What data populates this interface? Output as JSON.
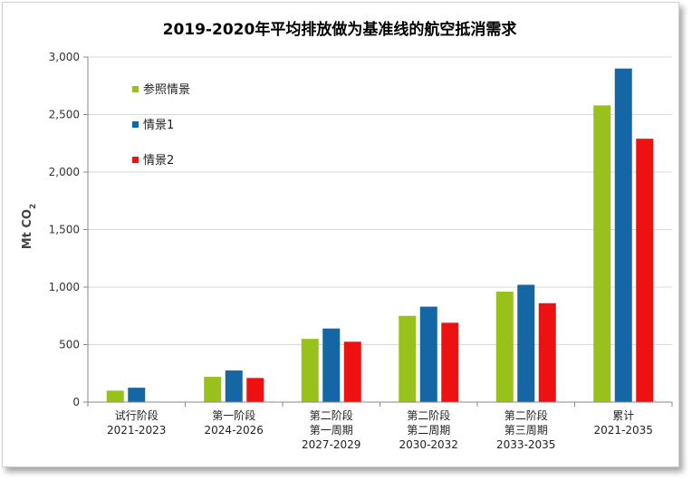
{
  "chart_data": {
    "type": "bar",
    "title": "2019-2020年平均排放做为基准线的航空抵消需求",
    "ylabel": "Mt CO",
    "ylabel_sub": "2",
    "ylim": [
      0,
      3000
    ],
    "yticks": [
      0,
      500,
      1000,
      1500,
      2000,
      2500,
      3000
    ],
    "ytick_labels": [
      "0",
      "500",
      "1,000",
      "1,500",
      "2,000",
      "2,500",
      "3,000"
    ],
    "legend_position": "top-left",
    "grid": true,
    "categories": [
      [
        "试行阶段",
        "2021-2023"
      ],
      [
        "第一阶段",
        "2024-2026"
      ],
      [
        "第二阶段",
        "第一周期",
        "2027-2029"
      ],
      [
        "第二阶段",
        "第二周期",
        "2030-2032"
      ],
      [
        "第二阶段",
        "第三周期",
        "2033-2035"
      ],
      [
        "累计",
        "2021-2035"
      ]
    ],
    "series": [
      {
        "name": "参照情景",
        "color": "#99c11b",
        "values": [
          100,
          220,
          550,
          750,
          960,
          2580
        ]
      },
      {
        "name": "情景1",
        "color": "#1466a4",
        "values": [
          125,
          275,
          640,
          830,
          1020,
          2900
        ]
      },
      {
        "name": "情景2",
        "color": "#ee1111",
        "values": [
          0,
          210,
          525,
          690,
          860,
          2290
        ]
      }
    ]
  }
}
